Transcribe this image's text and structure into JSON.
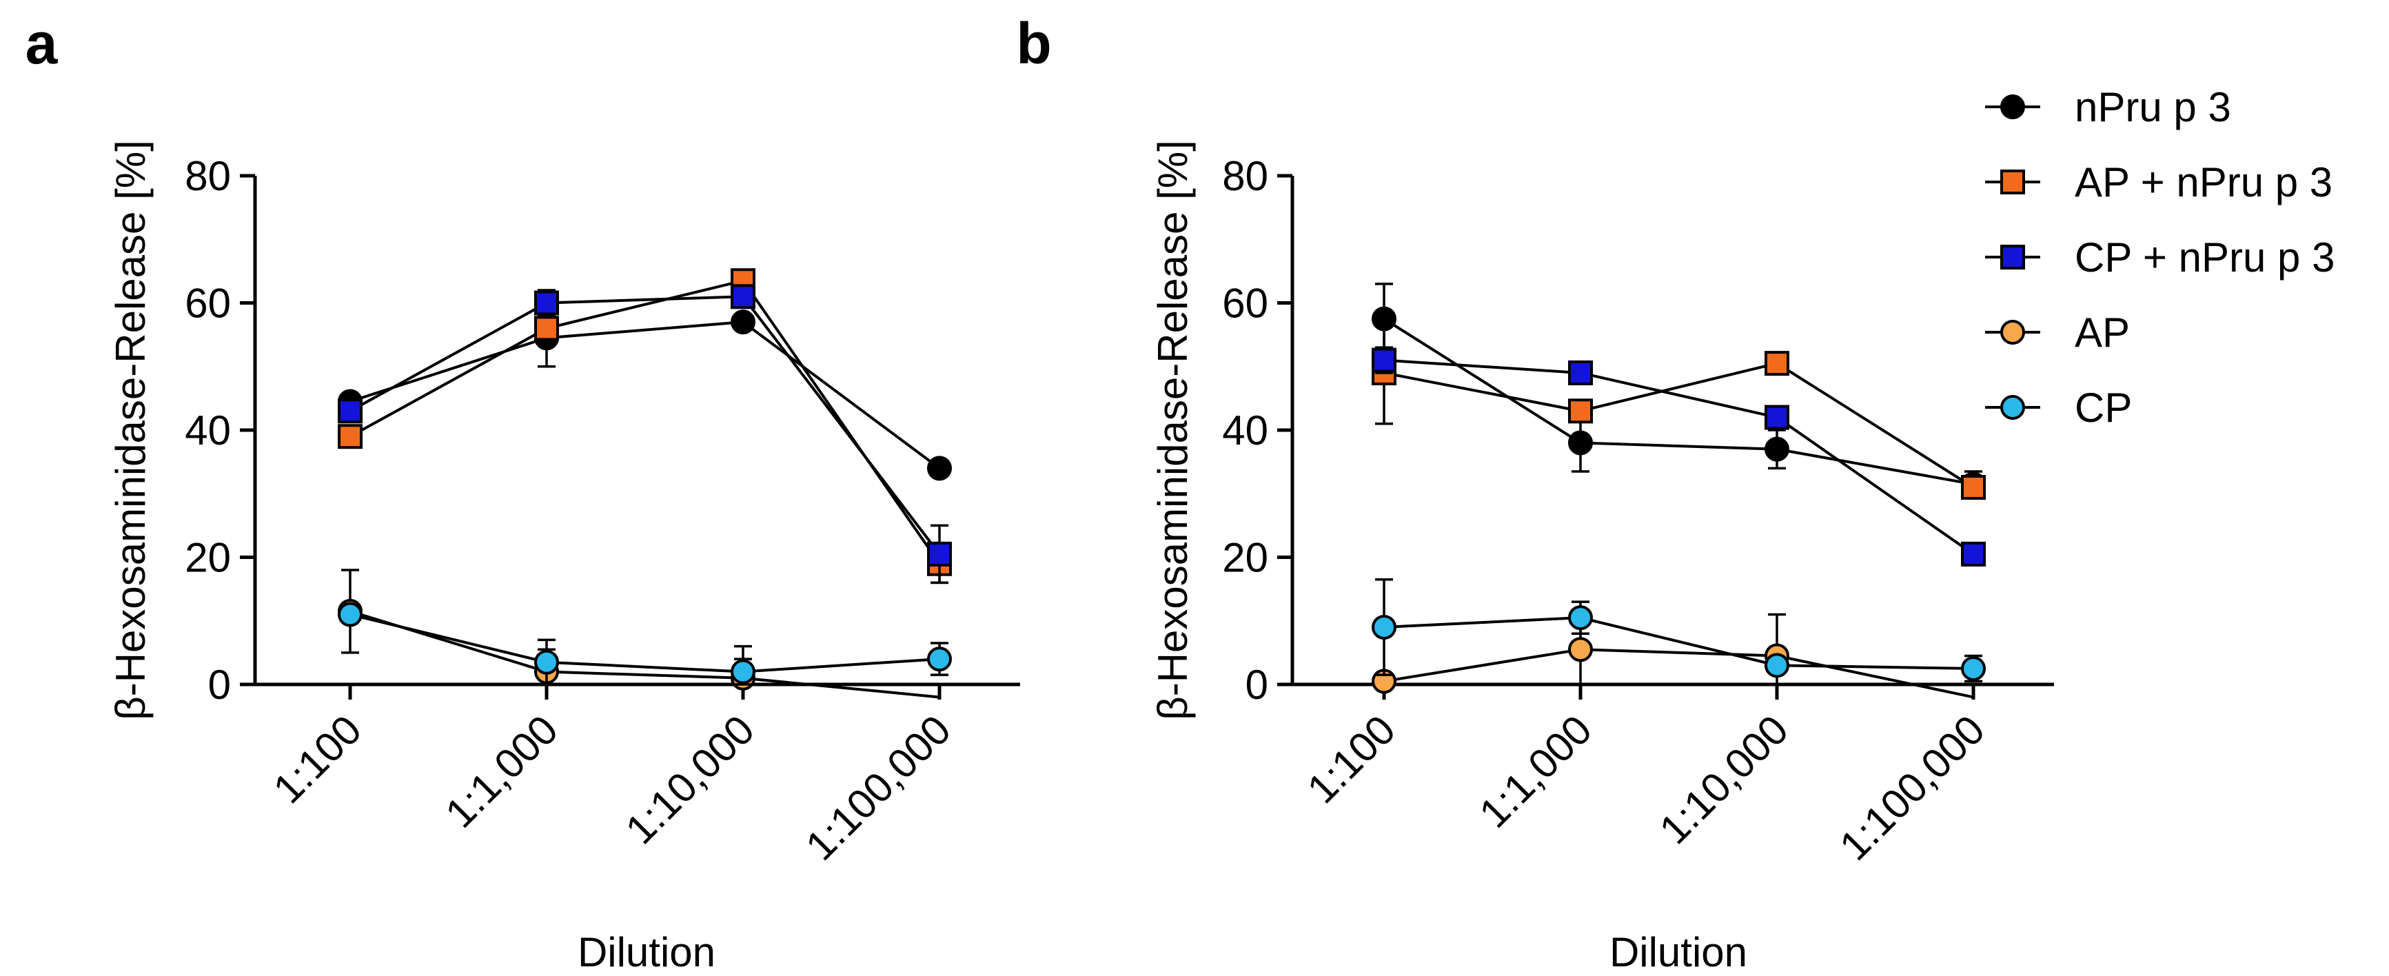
{
  "chart_data": [
    {
      "panel": "a",
      "type": "line",
      "title": "",
      "xlabel": "Dilution",
      "ylabel": "β-Hexosaminidase-Release [%]",
      "categories": [
        "1:100",
        "1:1,000",
        "1:10,000",
        "1:100,000"
      ],
      "ylim": [
        0,
        80
      ],
      "yticks": [
        "0",
        "20",
        "40",
        "60",
        "80"
      ],
      "series": [
        {
          "name": "nPru p 3",
          "marker": "circle",
          "color": "#000000",
          "values": [
            44.5,
            54.5,
            57,
            34
          ],
          "err": [
            0.5,
            4.5,
            0.5,
            0
          ]
        },
        {
          "name": "AP + nPru p 3",
          "marker": "square",
          "color": "#F26B1D",
          "values": [
            39,
            56,
            63.5,
            19
          ],
          "err": [
            0.5,
            2,
            0.5,
            3
          ]
        },
        {
          "name": "CP + nPru p 3",
          "marker": "square",
          "color": "#1414D8",
          "values": [
            43,
            60,
            61,
            20.5
          ],
          "err": [
            1,
            2,
            1,
            4.5
          ]
        },
        {
          "name": "AP",
          "marker": "circle",
          "color": "#F7A84B",
          "values": [
            11.5,
            2,
            1,
            -2
          ],
          "err": [
            6.5,
            3.5,
            3,
            0
          ]
        },
        {
          "name": "CP",
          "marker": "circle",
          "color": "#2AB8EB",
          "values": [
            11,
            3.5,
            2,
            4
          ],
          "err": [
            1,
            3.5,
            4,
            2.5
          ]
        }
      ]
    },
    {
      "panel": "b",
      "type": "line",
      "title": "",
      "xlabel": "Dilution",
      "ylabel": "β-Hexosaminidase-Release [%]",
      "categories": [
        "1:100",
        "1:1,000",
        "1:10,000",
        "1:100,000"
      ],
      "ylim": [
        0,
        80
      ],
      "yticks": [
        "0",
        "20",
        "40",
        "60",
        "80"
      ],
      "series": [
        {
          "name": "nPru p 3",
          "marker": "circle",
          "color": "#000000",
          "values": [
            57.5,
            38,
            37,
            31.5
          ],
          "err": [
            5.5,
            4.5,
            3,
            2
          ]
        },
        {
          "name": "AP + nPru p 3",
          "marker": "square",
          "color": "#F26B1D",
          "values": [
            49,
            43,
            50.5,
            31
          ],
          "err": [
            8,
            0.5,
            0.5,
            0.5
          ]
        },
        {
          "name": "CP + nPru p 3",
          "marker": "square",
          "color": "#1414D8",
          "values": [
            51,
            49,
            42,
            20.5
          ],
          "err": [
            2,
            0.5,
            0.5,
            0.5
          ]
        },
        {
          "name": "AP",
          "marker": "circle",
          "color": "#F7A84B",
          "values": [
            0.5,
            5.5,
            4.5,
            -2
          ],
          "err": [
            0.5,
            6,
            6.5,
            0
          ]
        },
        {
          "name": "CP",
          "marker": "circle",
          "color": "#2AB8EB",
          "values": [
            9,
            10.5,
            3,
            2.5
          ],
          "err": [
            7.5,
            2.5,
            1,
            2
          ]
        }
      ]
    }
  ],
  "legend": {
    "placement": "top-right",
    "items": [
      {
        "label": "nPru p 3",
        "marker": "circle",
        "color": "#000000"
      },
      {
        "label": "AP + nPru p 3",
        "marker": "square",
        "color": "#F26B1D"
      },
      {
        "label": "CP + nPru p 3",
        "marker": "square",
        "color": "#1414D8"
      },
      {
        "label": "AP",
        "marker": "circle",
        "color": "#F7A84B"
      },
      {
        "label": "CP",
        "marker": "circle",
        "color": "#2AB8EB"
      }
    ]
  }
}
